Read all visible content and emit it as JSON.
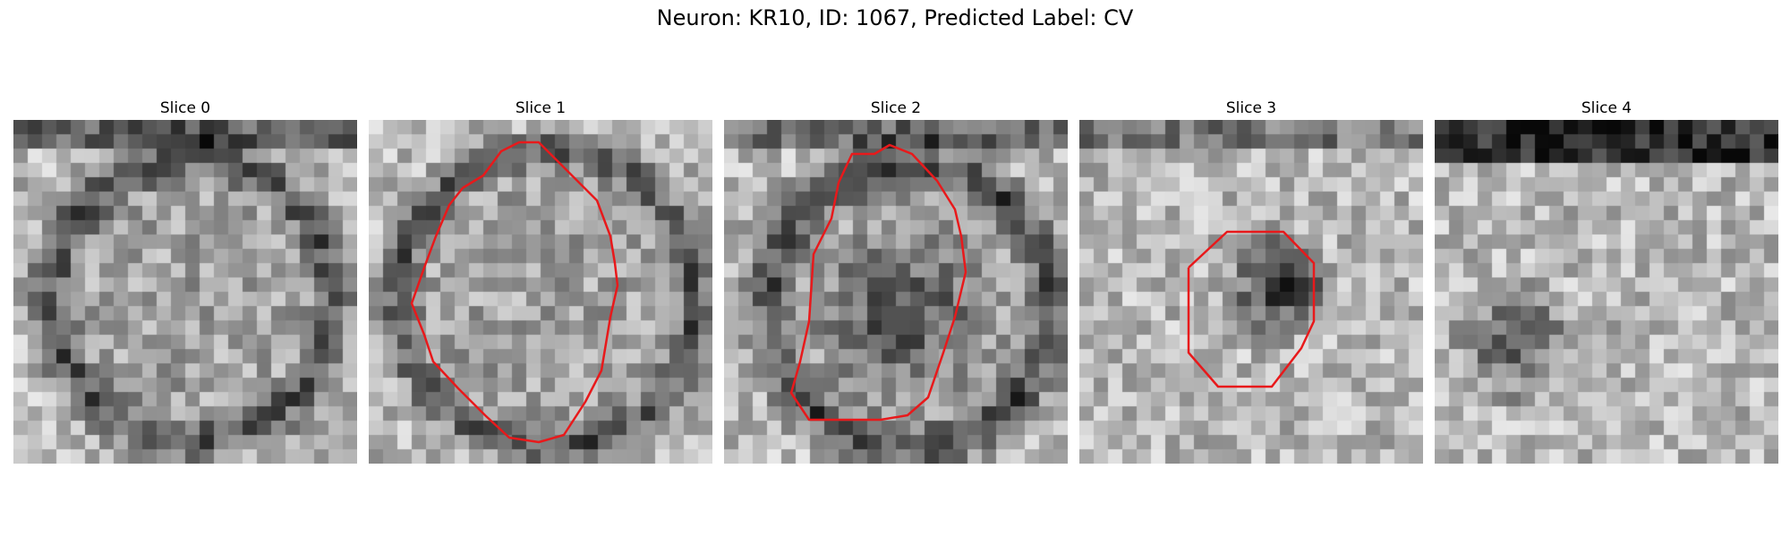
{
  "figure": {
    "title": "Neuron: KR10, ID: 1067, Predicted Label: CV"
  },
  "panels": [
    {
      "title": "Slice 0",
      "has_contour": false
    },
    {
      "title": "Slice 1",
      "has_contour": true
    },
    {
      "title": "Slice 2",
      "has_contour": true
    },
    {
      "title": "Slice 3",
      "has_contour": true
    },
    {
      "title": "Slice 4",
      "has_contour": false
    }
  ],
  "colors": {
    "contour": "#e8191b",
    "background": "#ffffff"
  }
}
